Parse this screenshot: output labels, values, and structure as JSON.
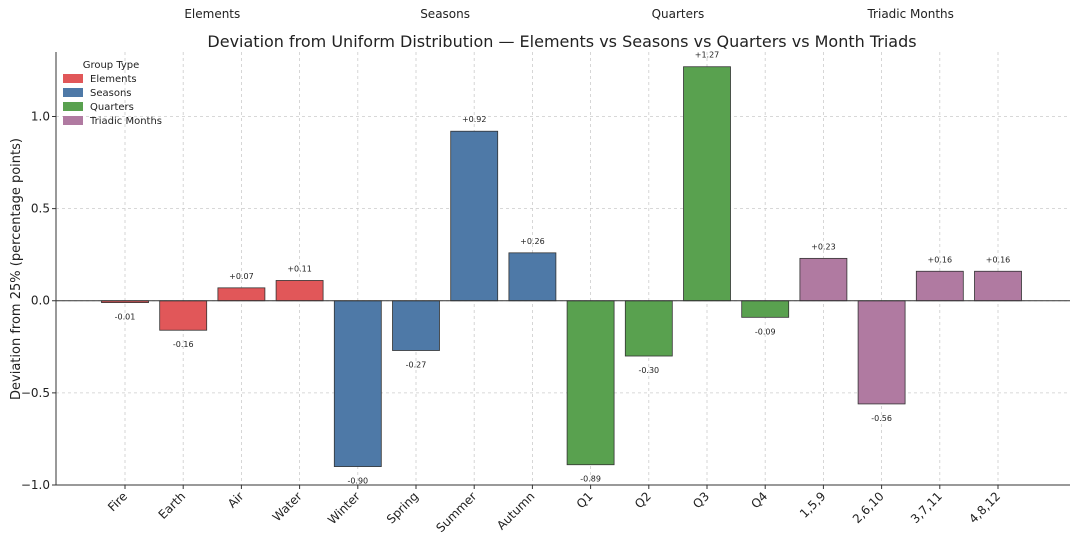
{
  "chart_data": {
    "type": "bar",
    "title": "Deviation from Uniform Distribution — Elements vs Seasons vs Quarters vs Month Triads",
    "xlabel": "",
    "ylabel": "Deviation from 25% (percentage points)",
    "ylim": [
      -1.0,
      1.35
    ],
    "yticks": [
      -1.0,
      -0.5,
      0.0,
      0.5,
      1.0
    ],
    "ytick_labels": [
      "−1.0",
      "−0.5",
      "0.0",
      "0.5",
      "1.0"
    ],
    "grid": true,
    "legend": {
      "title": "Group Type",
      "position": "top-left",
      "entries": [
        {
          "label": "Elements",
          "color": "#e15759"
        },
        {
          "label": "Seasons",
          "color": "#4e79a7"
        },
        {
          "label": "Quarters",
          "color": "#59a14f"
        },
        {
          "label": "Triadic Months",
          "color": "#b07aa1"
        }
      ]
    },
    "groups": [
      {
        "name": "Elements",
        "color": "#e15759",
        "categories": [
          "Fire",
          "Earth",
          "Air",
          "Water"
        ],
        "values": [
          -0.01,
          -0.16,
          0.07,
          0.11
        ],
        "labels": [
          "-0.01",
          "-0.16",
          "+0.07",
          "+0.11"
        ]
      },
      {
        "name": "Seasons",
        "color": "#4e79a7",
        "categories": [
          "Winter",
          "Spring",
          "Summer",
          "Autumn"
        ],
        "values": [
          -0.9,
          -0.27,
          0.92,
          0.26
        ],
        "labels": [
          "-0.90",
          "-0.27",
          "+0.92",
          "+0.26"
        ]
      },
      {
        "name": "Quarters",
        "color": "#59a14f",
        "categories": [
          "Q1",
          "Q2",
          "Q3",
          "Q4"
        ],
        "values": [
          -0.89,
          -0.3,
          1.27,
          -0.09
        ],
        "labels": [
          "-0.89",
          "-0.30",
          "+1.27",
          "-0.09"
        ]
      },
      {
        "name": "Triadic Months",
        "color": "#b07aa1",
        "categories": [
          "1,5,9",
          "2,6,10",
          "3,7,11",
          "4,8,12"
        ],
        "values": [
          0.23,
          -0.56,
          0.16,
          0.16
        ],
        "labels": [
          "+0.23",
          "-0.56",
          "+0.16",
          "+0.16"
        ]
      }
    ]
  }
}
